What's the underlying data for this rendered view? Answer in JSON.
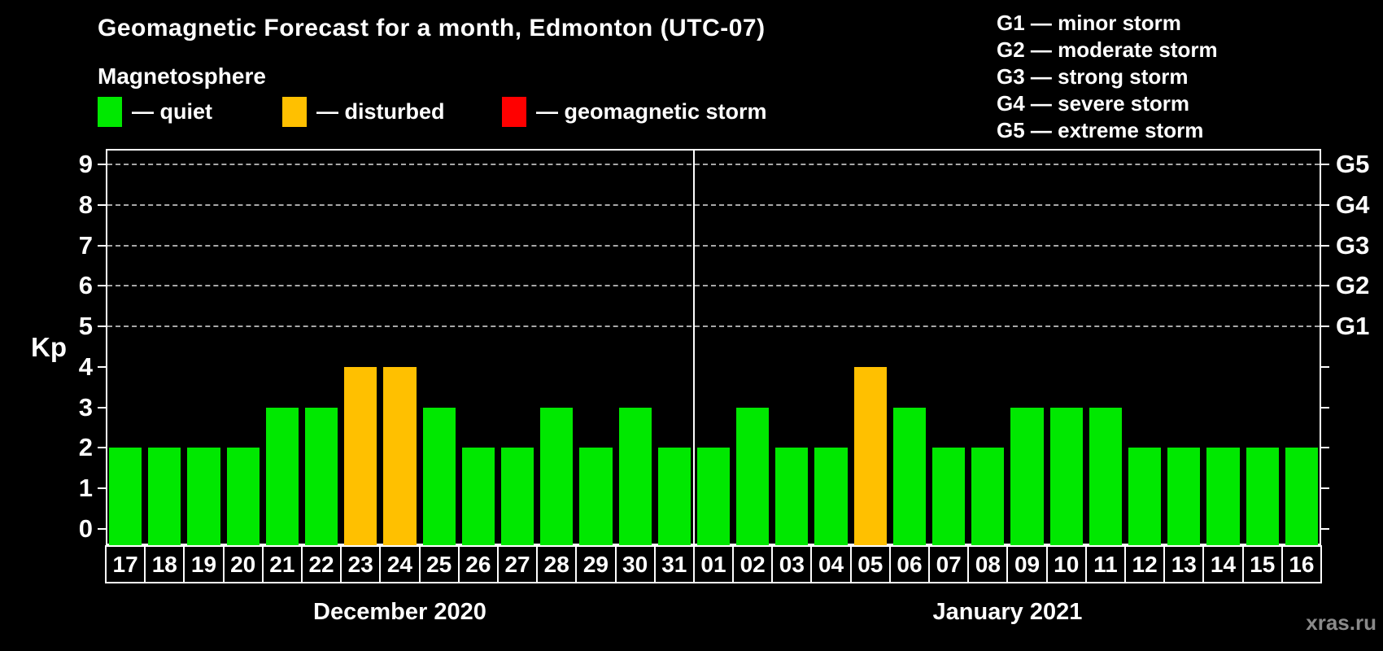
{
  "header": {
    "title": "Geomagnetic Forecast for a month, Edmonton (UTC-07)",
    "subtitle": "Magnetosphere"
  },
  "legend": {
    "items": [
      {
        "status": "quiet",
        "label": "— quiet",
        "color": "#00E800"
      },
      {
        "status": "disturbed",
        "label": "— disturbed",
        "color": "#FFC000"
      },
      {
        "status": "storm",
        "label": "— geomagnetic storm",
        "color": "#FF0000"
      }
    ]
  },
  "g_legend": [
    "G1 — minor storm",
    "G2 — moderate storm",
    "G3 — strong storm",
    "G4 — severe storm",
    "G5 — extreme storm"
  ],
  "watermark": "xras.ru",
  "chart_data": {
    "type": "bar",
    "title": "Geomagnetic Forecast for a month, Edmonton (UTC-07)",
    "ylabel": "Kp",
    "ylim": [
      -0.4,
      9.6
    ],
    "yticks": [
      0,
      1,
      2,
      3,
      4,
      5,
      6,
      7,
      8,
      9
    ],
    "gridlines": [
      5,
      6,
      7,
      8,
      9
    ],
    "grid_style": "dashed",
    "legend_position": "top-left",
    "right_axis": [
      {
        "kp": 5,
        "label": "G1"
      },
      {
        "kp": 6,
        "label": "G2"
      },
      {
        "kp": 7,
        "label": "G3"
      },
      {
        "kp": 8,
        "label": "G4"
      },
      {
        "kp": 9,
        "label": "G5"
      }
    ],
    "status_colors": {
      "quiet": "#00E800",
      "disturbed": "#FFC000",
      "storm": "#FF0000"
    },
    "months": [
      {
        "label": "December 2020",
        "days": [
          {
            "day": "17",
            "kp": 2,
            "status": "quiet"
          },
          {
            "day": "18",
            "kp": 2,
            "status": "quiet"
          },
          {
            "day": "19",
            "kp": 2,
            "status": "quiet"
          },
          {
            "day": "20",
            "kp": 2,
            "status": "quiet"
          },
          {
            "day": "21",
            "kp": 3,
            "status": "quiet"
          },
          {
            "day": "22",
            "kp": 3,
            "status": "quiet"
          },
          {
            "day": "23",
            "kp": 4,
            "status": "disturbed"
          },
          {
            "day": "24",
            "kp": 4,
            "status": "disturbed"
          },
          {
            "day": "25",
            "kp": 3,
            "status": "quiet"
          },
          {
            "day": "26",
            "kp": 2,
            "status": "quiet"
          },
          {
            "day": "27",
            "kp": 2,
            "status": "quiet"
          },
          {
            "day": "28",
            "kp": 3,
            "status": "quiet"
          },
          {
            "day": "29",
            "kp": 2,
            "status": "quiet"
          },
          {
            "day": "30",
            "kp": 3,
            "status": "quiet"
          },
          {
            "day": "31",
            "kp": 2,
            "status": "quiet"
          }
        ]
      },
      {
        "label": "January 2021",
        "days": [
          {
            "day": "01",
            "kp": 2,
            "status": "quiet"
          },
          {
            "day": "02",
            "kp": 3,
            "status": "quiet"
          },
          {
            "day": "03",
            "kp": 2,
            "status": "quiet"
          },
          {
            "day": "04",
            "kp": 2,
            "status": "quiet"
          },
          {
            "day": "05",
            "kp": 4,
            "status": "disturbed"
          },
          {
            "day": "06",
            "kp": 3,
            "status": "quiet"
          },
          {
            "day": "07",
            "kp": 2,
            "status": "quiet"
          },
          {
            "day": "08",
            "kp": 2,
            "status": "quiet"
          },
          {
            "day": "09",
            "kp": 3,
            "status": "quiet"
          },
          {
            "day": "10",
            "kp": 3,
            "status": "quiet"
          },
          {
            "day": "11",
            "kp": 3,
            "status": "quiet"
          },
          {
            "day": "12",
            "kp": 2,
            "status": "quiet"
          },
          {
            "day": "13",
            "kp": 2,
            "status": "quiet"
          },
          {
            "day": "14",
            "kp": 2,
            "status": "quiet"
          },
          {
            "day": "15",
            "kp": 2,
            "status": "quiet"
          },
          {
            "day": "16",
            "kp": 2,
            "status": "quiet"
          }
        ]
      }
    ]
  }
}
